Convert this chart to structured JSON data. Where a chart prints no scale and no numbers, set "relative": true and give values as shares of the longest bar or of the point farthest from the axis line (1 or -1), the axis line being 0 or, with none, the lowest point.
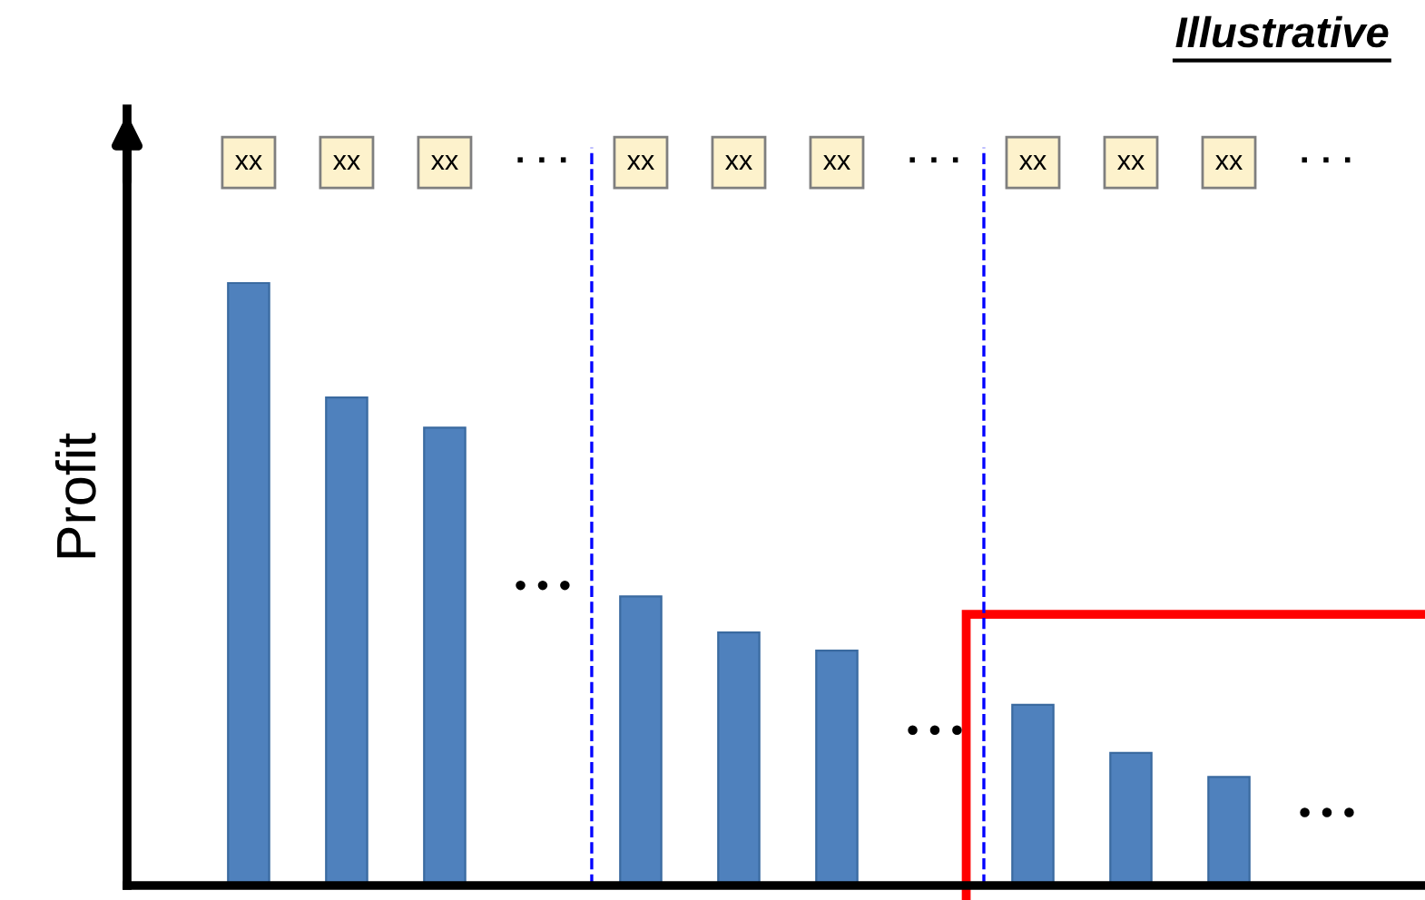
{
  "chart_data": {
    "type": "bar",
    "title": "Illustrative",
    "ylabel": "Profit",
    "relative": true,
    "categories": [
      "xx",
      "xx",
      "xx",
      "· · ·",
      "xx",
      "xx",
      "xx",
      "· · ·",
      "xx",
      "xx",
      "xx",
      "· · ·"
    ],
    "values": [
      1,
      0.81,
      0.76,
      null,
      0.48,
      0.42,
      0.39,
      null,
      0.3,
      0.22,
      0.18,
      null
    ],
    "color": "#4f81bd",
    "annotations": [
      "• • •",
      "• • •",
      "• • •"
    ]
  }
}
